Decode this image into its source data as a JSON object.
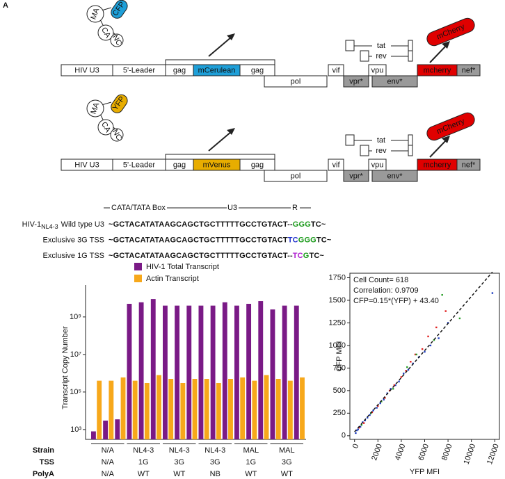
{
  "panel_label": "A",
  "constructs": [
    {
      "genes": [
        "HIV U3",
        "5'-Leader",
        "gag",
        "mCerulean",
        "gag",
        "pol",
        "vif",
        "vpr*",
        "vpu",
        "env*",
        "mcherry",
        "nef*",
        "tat",
        "rev"
      ],
      "protein": [
        "MA",
        "CFP",
        "CA",
        "NC"
      ],
      "reporter": "mCherry",
      "color": "#1e9fd8"
    },
    {
      "genes": [
        "HIV U3",
        "5'-Leader",
        "gag",
        "mVenus",
        "gag",
        "pol",
        "vif",
        "vpr*",
        "vpu",
        "env*",
        "mcherry",
        "nef*",
        "tat",
        "rev"
      ],
      "protein": [
        "MA",
        "YFP",
        "CA",
        "NC"
      ],
      "reporter": "mCherry",
      "color": "#e8ad00"
    }
  ],
  "sequence_header": [
    "CATA/TATA Box",
    "U3",
    "R"
  ],
  "sequences": [
    {
      "label": [
        "HIV-1",
        "NL4-3",
        "Wild type U3"
      ],
      "segments": [
        {
          "text": "~GCTACATATAAGCAGCTGCTTTTTGCCTGTACT--",
          "color": "#111111"
        },
        {
          "text": "GGG",
          "color": "#1a9a1a"
        },
        {
          "text": "TC~",
          "color": "#111111"
        }
      ]
    },
    {
      "label": [
        "Exclusive 3G TSS"
      ],
      "segments": [
        {
          "text": "~GCTACATATAAGCAGCTGCTTTTTGCCTGTACT",
          "color": "#111111"
        },
        {
          "text": "TC",
          "color": "#2233cc"
        },
        {
          "text": "GGG",
          "color": "#1a9a1a"
        },
        {
          "text": "TC~",
          "color": "#111111"
        }
      ]
    },
    {
      "label": [
        "Exclusive 1G TSS"
      ],
      "segments": [
        {
          "text": "~GCTACATATAAGCAGCTGCTTTTTGCCTGTACT--",
          "color": "#111111"
        },
        {
          "text": "TC",
          "color": "#b020d0"
        },
        {
          "text": "G",
          "color": "#1a9a1a"
        },
        {
          "text": "TC~",
          "color": "#111111"
        }
      ]
    }
  ],
  "chart_data": [
    {
      "type": "bar",
      "y_label": "Transcript Copy Number",
      "log_scale": true,
      "categories": [
        null,
        null,
        null,
        null,
        null,
        null,
        null,
        null,
        null,
        null,
        null,
        null,
        null,
        null,
        null,
        null,
        null,
        null
      ],
      "series": [
        {
          "name": "HIV-1 Total Transcript",
          "color": "#7a1a86",
          "values": [
            800,
            3000,
            3500,
            5000000000,
            6000000000,
            9000000000,
            4000000000,
            4000000000,
            4000000000,
            4000000000,
            4000000000,
            6000000000,
            4000000000,
            5000000000,
            7000000000,
            2500000000,
            4000000000,
            4000000000
          ]
        },
        {
          "name": "Actin Transcript",
          "color": "#f7a81b",
          "values": [
            400000,
            400000,
            600000,
            400000,
            300000,
            800000,
            500000,
            300000,
            500000,
            500000,
            300000,
            500000,
            600000,
            400000,
            800000,
            500000,
            400000,
            600000
          ]
        }
      ],
      "ylim": [
        300,
        50000000000
      ],
      "yticks": [
        {
          "value": 1000,
          "label": "10³"
        },
        {
          "value": 100000,
          "label": "10⁵"
        },
        {
          "value": 10000000,
          "label": "10⁷"
        },
        {
          "value": 1000000000,
          "label": "10⁹"
        }
      ],
      "row_labels": [
        "Strain",
        "TSS",
        "PolyA"
      ],
      "groups": [
        [
          "N/A",
          "N/A",
          "N/A"
        ],
        [
          "NL4-3",
          "1G",
          "WT"
        ],
        [
          "NL4-3",
          "3G",
          "WT"
        ],
        [
          "NL4-3",
          "3G",
          "NB"
        ],
        [
          "MAL",
          "1G",
          "WT"
        ],
        [
          "MAL",
          "3G",
          "WT"
        ]
      ]
    },
    {
      "type": "scatter",
      "x_label": "YFP MFI",
      "y_label": "CFP MFI",
      "annotations": [
        "Cell Count= 618",
        "Correlation: 0.9709",
        "CFP=0.15*(YFP) + 43.40"
      ],
      "fit": {
        "slope": 0.15,
        "intercept": 43.4
      },
      "xlim": [
        -400,
        12400
      ],
      "xticks": [
        0,
        2000,
        4000,
        6000,
        8000,
        10000,
        12000
      ],
      "ylim": [
        -40,
        1800
      ],
      "yticks": [
        0,
        250,
        500,
        750,
        1000,
        1250,
        1500,
        1750
      ],
      "series": [
        {
          "color": "#1f3fc0",
          "x": [
            100,
            200,
            300,
            500,
            700,
            900,
            1100,
            1300,
            1600,
            1900,
            2200,
            2500,
            2800,
            3100,
            3500,
            3800,
            4200,
            4600,
            5000,
            5500,
            6000,
            6500,
            7200,
            8000,
            11800
          ],
          "values": [
            30,
            60,
            70,
            100,
            150,
            170,
            200,
            230,
            280,
            310,
            360,
            400,
            470,
            520,
            560,
            600,
            690,
            730,
            800,
            870,
            930,
            1000,
            1080,
            1250,
            1580
          ]
        },
        {
          "color": "#e02020",
          "x": [
            400,
            800,
            1500,
            2000,
            2600,
            3000,
            3400,
            4000,
            4400,
            4800,
            5200,
            5800,
            6300,
            7000,
            7800
          ],
          "values": [
            90,
            140,
            260,
            330,
            420,
            500,
            560,
            650,
            720,
            820,
            900,
            960,
            1100,
            1200,
            1380
          ]
        },
        {
          "color": "#2a9d2a",
          "x": [
            600,
            1400,
            2300,
            3300,
            4500,
            5300,
            6800,
            7500,
            9000
          ],
          "values": [
            120,
            250,
            380,
            520,
            760,
            900,
            1060,
            1560,
            1300
          ]
        }
      ]
    }
  ]
}
